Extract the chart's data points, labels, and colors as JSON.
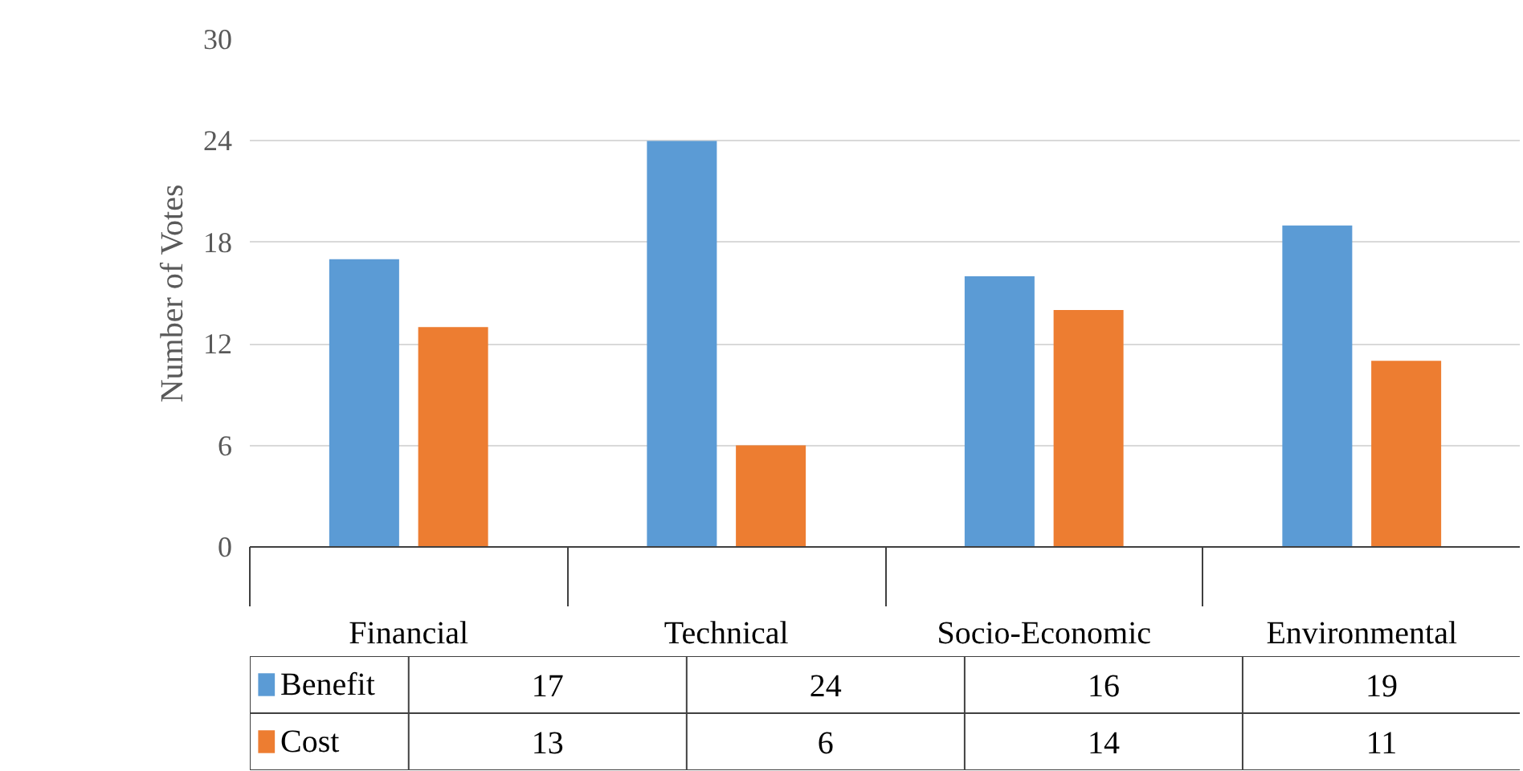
{
  "chart_data": {
    "type": "bar",
    "ylabel": "Number of Votes",
    "categories": [
      "Financial",
      "Technical",
      "Socio-Economic",
      "Environmental"
    ],
    "series": [
      {
        "name": "Benefit",
        "color": "#5b9bd5",
        "values": [
          17,
          24,
          16,
          19
        ]
      },
      {
        "name": "Cost",
        "color": "#ed7d31",
        "values": [
          13,
          6,
          14,
          11
        ]
      }
    ],
    "ylim": [
      0,
      30
    ],
    "yticks": [
      0,
      6,
      12,
      18,
      24,
      30
    ],
    "grid": "y",
    "data_labels": true,
    "legend": "bottom"
  }
}
